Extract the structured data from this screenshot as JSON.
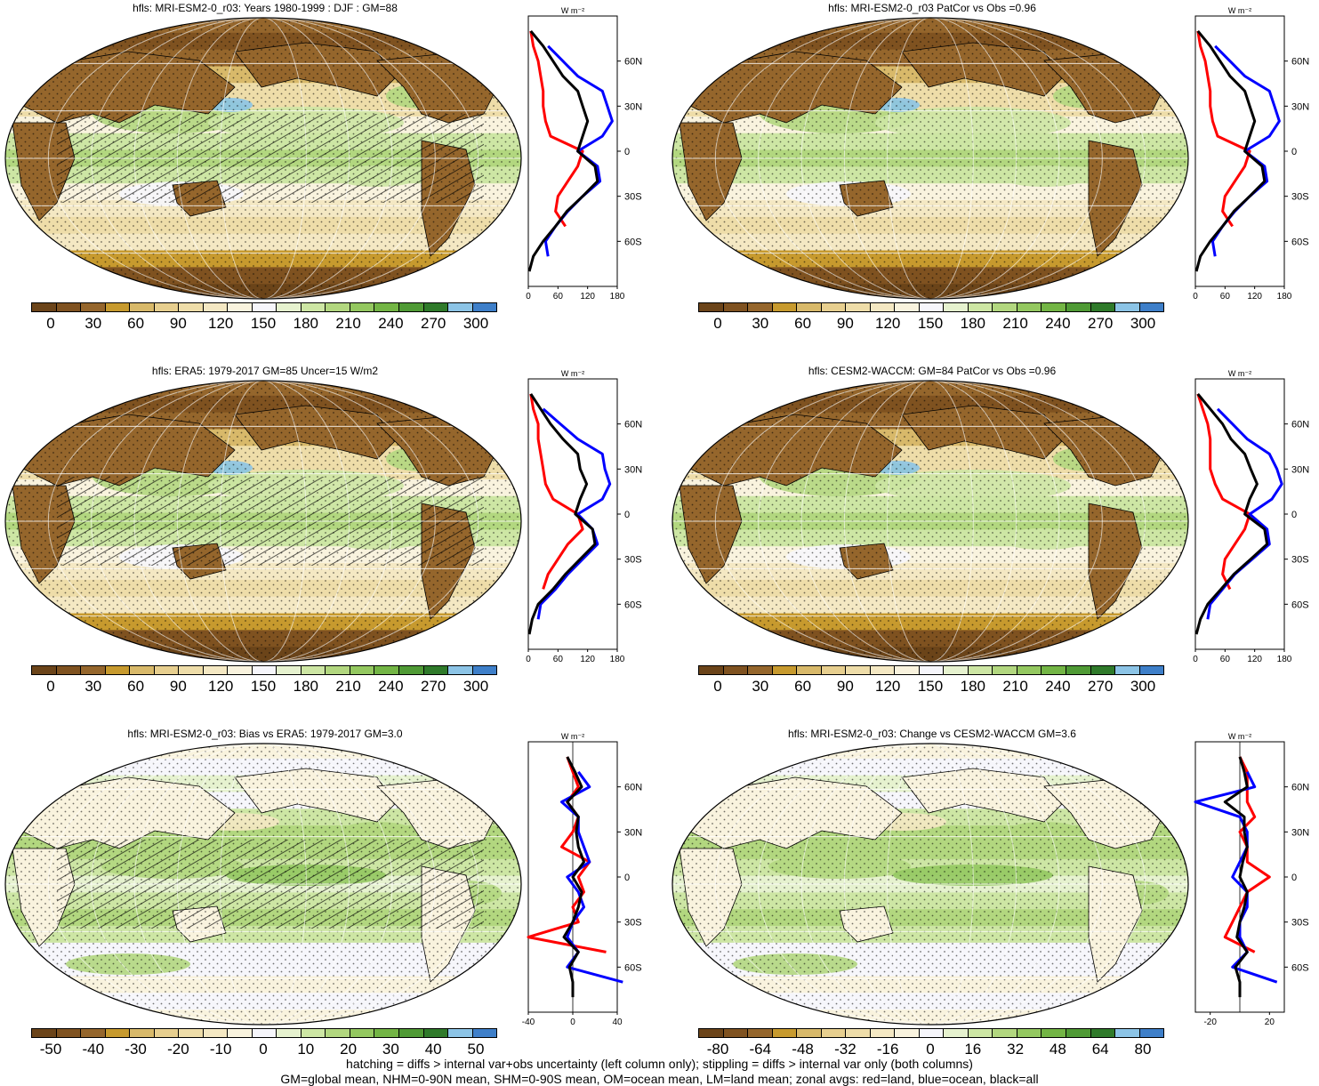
{
  "colors": {
    "brown_to_blue": [
      "#6b4419",
      "#7f5220",
      "#95662c",
      "#c79a2e",
      "#d8b96a",
      "#e7cf8f",
      "#eedda9",
      "#f4e8c3",
      "#f9f3de",
      "#f6f6fb",
      "#e6f2cf",
      "#cde6a4",
      "#b2d77f",
      "#94c860",
      "#73b545",
      "#4f9a35",
      "#2f7a2a",
      "#8cc4e6",
      "#3e7fc9"
    ],
    "land_line": "#ff0000",
    "ocean_line": "#0000ff",
    "all_line": "#000000"
  },
  "zonal_units": "W m⁻²",
  "lat_labels": [
    "60N",
    "30N",
    "0",
    "30S",
    "60S"
  ],
  "panels": [
    {
      "title": "hfls: MRI-ESM2-0_r03: Years 1980-1999 : DJF : GM=88",
      "colorbar_labels": [
        "0",
        "30",
        "60",
        "90",
        "120",
        "150",
        "180",
        "210",
        "240",
        "270",
        "300"
      ],
      "zonal_ticks": [
        "0",
        "60",
        "120",
        "180"
      ],
      "zonal_data": {
        "lat": [
          80,
          70,
          60,
          50,
          40,
          30,
          20,
          10,
          0,
          -10,
          -20,
          -30,
          -40,
          -50,
          -60,
          -70,
          -80
        ],
        "land": [
          5,
          10,
          20,
          25,
          30,
          30,
          35,
          45,
          110,
          100,
          80,
          60,
          55,
          75,
          null,
          15,
          null
        ],
        "ocean": [
          null,
          40,
          70,
          100,
          150,
          160,
          170,
          150,
          100,
          140,
          145,
          110,
          80,
          55,
          35,
          40,
          null
        ],
        "all": [
          5,
          30,
          50,
          70,
          100,
          110,
          120,
          110,
          100,
          135,
          140,
          110,
          78,
          55,
          30,
          10,
          2
        ]
      }
    },
    {
      "title": "hfls: MRI-ESM2-0_r03 PatCor vs Obs =0.96",
      "colorbar_labels": [
        "0",
        "30",
        "60",
        "90",
        "120",
        "150",
        "180",
        "210",
        "240",
        "270",
        "300"
      ],
      "zonal_ticks": [
        "0",
        "60",
        "120",
        "180"
      ],
      "zonal_data": {
        "lat": [
          80,
          70,
          60,
          50,
          40,
          30,
          20,
          10,
          0,
          -10,
          -20,
          -30,
          -40,
          -50,
          -60,
          -70,
          -80
        ],
        "land": [
          5,
          10,
          20,
          25,
          30,
          30,
          35,
          45,
          110,
          100,
          80,
          60,
          55,
          75,
          null,
          15,
          null
        ],
        "ocean": [
          null,
          40,
          70,
          100,
          150,
          160,
          170,
          150,
          100,
          140,
          145,
          110,
          80,
          55,
          35,
          40,
          null
        ],
        "all": [
          5,
          30,
          50,
          70,
          100,
          110,
          120,
          110,
          100,
          135,
          140,
          110,
          78,
          55,
          30,
          10,
          2
        ]
      }
    },
    {
      "title": "hfls: ERA5: 1979-2017 GM=85 Uncer=15 W/m2",
      "colorbar_labels": [
        "0",
        "30",
        "60",
        "90",
        "120",
        "150",
        "180",
        "210",
        "240",
        "270",
        "300"
      ],
      "zonal_ticks": [
        "0",
        "60",
        "120",
        "180"
      ],
      "zonal_data": {
        "lat": [
          80,
          70,
          60,
          50,
          40,
          30,
          20,
          10,
          0,
          -10,
          -20,
          -30,
          -40,
          -50,
          -60,
          -70,
          -80
        ],
        "land": [
          5,
          10,
          20,
          20,
          25,
          30,
          35,
          50,
          100,
          110,
          80,
          60,
          40,
          30,
          null,
          10,
          null
        ],
        "ocean": [
          null,
          30,
          65,
          100,
          150,
          155,
          165,
          150,
          100,
          130,
          140,
          110,
          80,
          55,
          25,
          20,
          null
        ],
        "all": [
          5,
          25,
          45,
          70,
          100,
          105,
          118,
          105,
          95,
          130,
          135,
          105,
          75,
          50,
          20,
          8,
          2
        ]
      }
    },
    {
      "title": "hfls: CESM2-WACCM: GM=84 PatCor vs Obs =0.96",
      "colorbar_labels": [
        "0",
        "30",
        "60",
        "90",
        "120",
        "150",
        "180",
        "210",
        "240",
        "270",
        "300"
      ],
      "zonal_ticks": [
        "0",
        "60",
        "120",
        "180"
      ],
      "zonal_data": {
        "lat": [
          80,
          70,
          60,
          50,
          40,
          30,
          20,
          10,
          0,
          -10,
          -20,
          -30,
          -40,
          -50,
          -60,
          -70,
          -80
        ],
        "land": [
          5,
          15,
          25,
          30,
          30,
          30,
          40,
          55,
          110,
          100,
          80,
          60,
          55,
          70,
          null,
          15,
          null
        ],
        "ocean": [
          null,
          45,
          75,
          105,
          150,
          165,
          175,
          155,
          110,
          145,
          150,
          115,
          80,
          55,
          30,
          25,
          null
        ],
        "all": [
          5,
          30,
          55,
          72,
          100,
          112,
          125,
          110,
          100,
          140,
          145,
          112,
          78,
          52,
          25,
          10,
          2
        ]
      }
    },
    {
      "title": "hfls: MRI-ESM2-0_r03: Bias vs ERA5: 1979-2017 GM=3.0",
      "colorbar_labels": [
        "-50",
        "-40",
        "-30",
        "-20",
        "-10",
        "0",
        "10",
        "20",
        "30",
        "40",
        "50"
      ],
      "zonal_ticks": [
        "-40",
        "0",
        "40"
      ],
      "zonal_data": {
        "lat": [
          80,
          70,
          60,
          50,
          40,
          30,
          20,
          10,
          0,
          -10,
          -20,
          -30,
          -40,
          -50,
          -60,
          -70,
          -80
        ],
        "land": [
          -5,
          0,
          5,
          -5,
          5,
          0,
          -10,
          15,
          5,
          10,
          0,
          5,
          -40,
          30,
          null,
          5,
          null
        ],
        "ocean": [
          null,
          5,
          15,
          -10,
          5,
          5,
          10,
          15,
          -5,
          5,
          10,
          0,
          -5,
          5,
          -5,
          45,
          null
        ],
        "all": [
          -5,
          2,
          8,
          -5,
          5,
          3,
          5,
          10,
          0,
          8,
          5,
          0,
          -8,
          5,
          -3,
          0,
          0
        ]
      }
    },
    {
      "title": "hfls: MRI-ESM2-0_r03: Change vs CESM2-WACCM GM=3.6",
      "colorbar_labels": [
        "-80",
        "-64",
        "-48",
        "-32",
        "-16",
        "0",
        "16",
        "32",
        "48",
        "64",
        "80"
      ],
      "zonal_ticks": [
        "-20",
        "20"
      ],
      "zonal_data": {
        "lat": [
          80,
          70,
          60,
          50,
          40,
          30,
          20,
          10,
          0,
          -10,
          -20,
          -30,
          -40,
          -50,
          -60,
          -70,
          -80
        ],
        "land": [
          0,
          5,
          5,
          5,
          10,
          0,
          5,
          5,
          20,
          5,
          0,
          -5,
          -10,
          10,
          null,
          5,
          null
        ],
        "ocean": [
          null,
          5,
          10,
          -30,
          0,
          5,
          5,
          0,
          -5,
          5,
          5,
          0,
          0,
          5,
          -5,
          25,
          null
        ],
        "all": [
          0,
          3,
          5,
          -10,
          3,
          3,
          5,
          2,
          0,
          5,
          3,
          0,
          -2,
          5,
          -3,
          0,
          0
        ]
      }
    }
  ],
  "footer": [
    "hatching = diffs > internal var+obs uncertainty (left column only); stippling = diffs > internal var only (both columns)",
    "GM=global mean, NHM=0-90N mean, SHM=0-90S mean, OM=ocean mean, LM=land mean; zonal avgs: red=land, blue=ocean, black=all"
  ]
}
